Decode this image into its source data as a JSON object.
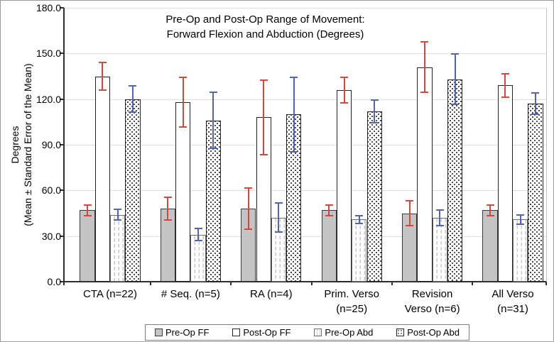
{
  "figure": {
    "title_line1": "Pre-Op and Post-Op Range of Movement:",
    "title_line2": "Forward Flexion and Abduction (Degrees)"
  },
  "y_axis": {
    "label_line1": "Degrees",
    "label_line2": "(Mean ± Standard Error of the Mean)"
  },
  "x_axis": {
    "categories": [
      {
        "lines": [
          "CTA (n=22)"
        ]
      },
      {
        "lines": [
          "# Seq. (n=5)"
        ]
      },
      {
        "lines": [
          "RA (n=4)"
        ]
      },
      {
        "lines": [
          "Prim. Verso",
          "(n=25)"
        ]
      },
      {
        "lines": [
          "Revision",
          "Verso (n=6)"
        ]
      },
      {
        "lines": [
          "All Verso",
          "(n=31)"
        ]
      }
    ]
  },
  "colors": {
    "ff_error": "#cb4a42",
    "abd_error": "#5566a8",
    "gray_bar_fill": "#c4c4c4",
    "gridline": "#dedede"
  },
  "chart_data": {
    "type": "bar",
    "title": "Pre-Op and Post-Op Range of Movement: Forward Flexion and Abduction (Degrees)",
    "xlabel": "",
    "ylabel": "Degrees (Mean ± Standard Error of the Mean)",
    "ylim": [
      0,
      180
    ],
    "ytick_step": 30,
    "yticks": [
      "0.0",
      "30.0",
      "60.0",
      "90.0",
      "120.0",
      "150.0",
      "180.0"
    ],
    "grid": true,
    "legend_position": "bottom",
    "error_bars": true,
    "categories": [
      "CTA (n=22)",
      "# Seq. (n=5)",
      "RA (n=4)",
      "Prim. Verso (n=25)",
      "Revision Verso (n=6)",
      "All Verso (n=31)"
    ],
    "series": [
      {
        "name": "Pre-Op FF",
        "style": "solid-gray",
        "error_color": "#cb4a42",
        "values": [
          47,
          48,
          48,
          47,
          45,
          47
        ],
        "stderr": [
          4,
          8,
          14,
          4,
          8.5,
          4
        ]
      },
      {
        "name": "Post-Op FF",
        "style": "plain-white",
        "error_color": "#cb4a42",
        "values": [
          135,
          118,
          108,
          126,
          141,
          129
        ],
        "stderr": [
          9.5,
          17,
          25,
          9,
          17,
          8
        ]
      },
      {
        "name": "Pre-Op Abd",
        "style": "dashed-pattern",
        "error_color": "#5566a8",
        "values": [
          44,
          31,
          42,
          41,
          42,
          41
        ],
        "stderr": [
          4,
          4.5,
          10,
          3,
          5.5,
          3.5
        ]
      },
      {
        "name": "Post-Op Abd",
        "style": "dotted-pattern",
        "error_color": "#5566a8",
        "values": [
          120,
          106,
          110,
          112,
          133,
          117
        ],
        "stderr": [
          9,
          19,
          25,
          8,
          17,
          7.5
        ]
      }
    ]
  }
}
